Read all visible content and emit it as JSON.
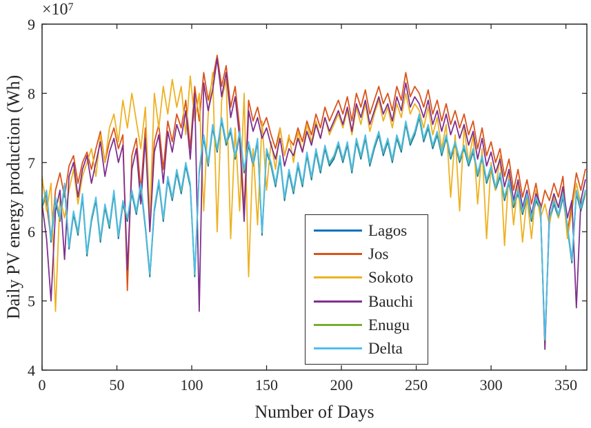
{
  "figure": {
    "multiplier_base": "×10",
    "multiplier_exp": "7",
    "xlabel": "Number of Days",
    "ylabel": "Daily PV energy production (Wh)"
  },
  "legend": {
    "items": [
      {
        "label": "Lagos",
        "color": "#0072BD"
      },
      {
        "label": "Jos",
        "color": "#D95319"
      },
      {
        "label": "Sokoto",
        "color": "#EDB120"
      },
      {
        "label": "Bauchi",
        "color": "#7E2F8E"
      },
      {
        "label": "Enugu",
        "color": "#77AC30"
      },
      {
        "label": "Delta",
        "color": "#4DBEEE"
      }
    ]
  },
  "chart_data": {
    "type": "line",
    "title": "",
    "xlabel": "Number of Days",
    "ylabel": "Daily PV energy production (Wh)",
    "y_unit_multiplier": 10000000,
    "xlim": [
      0,
      364
    ],
    "ylim_e7": [
      4,
      9
    ],
    "xticks": [
      0,
      50,
      100,
      150,
      200,
      250,
      300,
      350
    ],
    "yticks": [
      4,
      5,
      6,
      7,
      8,
      9
    ],
    "grid": false,
    "legend_position": "inside lower right of center",
    "axis_color": "#262626",
    "x_days": {
      "start": 0,
      "step": 3,
      "count": 122
    },
    "series": [
      {
        "name": "Lagos",
        "color": "#0072BD",
        "values_e7": [
          6.35,
          6.55,
          5.85,
          6.45,
          6.15,
          6.65,
          5.75,
          6.25,
          5.95,
          6.5,
          5.65,
          6.15,
          6.45,
          5.85,
          6.35,
          6.05,
          6.55,
          5.9,
          6.4,
          6.15,
          6.55,
          6.25,
          6.65,
          6.05,
          5.35,
          6.3,
          6.7,
          6.15,
          6.75,
          6.45,
          6.85,
          6.55,
          6.95,
          6.65,
          5.35,
          6.85,
          7.35,
          6.95,
          7.5,
          7.15,
          7.6,
          7.25,
          7.45,
          7.05,
          7.4,
          6.85,
          7.25,
          6.95,
          7.3,
          5.95,
          7.15,
          6.95,
          6.65,
          7.05,
          6.45,
          6.85,
          6.55,
          6.95,
          6.65,
          7.1,
          6.75,
          7.15,
          6.85,
          7.2,
          6.95,
          7.05,
          7.25,
          7.0,
          7.25,
          6.85,
          7.3,
          7.05,
          7.35,
          6.95,
          7.2,
          7.4,
          7.1,
          7.3,
          7.0,
          7.35,
          7.15,
          7.55,
          7.25,
          7.4,
          7.65,
          7.3,
          7.5,
          7.2,
          7.4,
          7.1,
          7.35,
          7.05,
          7.25,
          7.0,
          7.2,
          6.95,
          7.15,
          6.8,
          7.05,
          6.7,
          6.9,
          6.6,
          6.8,
          6.45,
          6.7,
          6.35,
          6.55,
          6.25,
          6.5,
          6.15,
          6.45,
          6.3,
          4.4,
          6.15,
          6.4,
          6.2,
          6.5,
          6.05,
          5.55,
          6.55,
          6.3,
          6.55
        ]
      },
      {
        "name": "Jos",
        "color": "#D95319",
        "values_e7": [
          6.75,
          6.4,
          5.9,
          6.6,
          6.85,
          6.5,
          6.95,
          7.1,
          6.7,
          7.0,
          7.15,
          6.9,
          7.2,
          7.45,
          7.0,
          7.3,
          7.5,
          7.2,
          7.4,
          5.15,
          7.1,
          7.35,
          6.6,
          7.5,
          6.2,
          7.3,
          7.55,
          6.9,
          7.6,
          7.3,
          7.7,
          7.5,
          7.9,
          7.2,
          8.1,
          7.6,
          8.3,
          7.9,
          8.2,
          8.55,
          8.1,
          8.4,
          7.8,
          8.1,
          7.5,
          6.3,
          7.9,
          7.6,
          7.8,
          7.5,
          7.65,
          7.4,
          7.2,
          7.5,
          7.1,
          7.35,
          7.25,
          7.5,
          7.3,
          7.6,
          7.4,
          7.7,
          7.5,
          7.8,
          7.6,
          7.75,
          7.9,
          7.7,
          7.95,
          7.6,
          8.0,
          7.8,
          8.05,
          7.7,
          7.9,
          8.1,
          7.85,
          8.0,
          7.75,
          8.1,
          7.9,
          8.3,
          7.95,
          8.1,
          8.0,
          7.8,
          8.05,
          7.7,
          7.9,
          7.6,
          7.85,
          7.55,
          7.75,
          7.5,
          7.7,
          7.4,
          7.6,
          7.2,
          7.5,
          7.1,
          7.3,
          7.0,
          7.2,
          6.8,
          7.05,
          6.6,
          6.9,
          6.5,
          6.75,
          6.4,
          6.7,
          6.3,
          6.6,
          6.45,
          6.7,
          6.5,
          6.8,
          6.0,
          6.4,
          6.85,
          6.6,
          6.9
        ]
      },
      {
        "name": "Sokoto",
        "color": "#EDB120",
        "values_e7": [
          6.8,
          6.3,
          6.7,
          4.85,
          6.5,
          6.2,
          6.6,
          6.9,
          6.4,
          6.8,
          7.0,
          7.2,
          6.8,
          7.4,
          7.0,
          7.5,
          7.7,
          7.3,
          7.9,
          7.5,
          8.0,
          7.6,
          7.2,
          7.8,
          6.2,
          8.0,
          7.5,
          8.1,
          7.7,
          8.2,
          7.8,
          8.1,
          7.4,
          8.25,
          7.6,
          8.0,
          6.3,
          7.7,
          8.3,
          6.0,
          7.9,
          8.2,
          5.9,
          7.5,
          6.3,
          8.0,
          5.35,
          7.2,
          6.1,
          7.6,
          6.6,
          7.3,
          6.9,
          7.5,
          7.1,
          7.4,
          7.0,
          7.45,
          7.15,
          7.55,
          7.3,
          7.6,
          7.35,
          7.65,
          7.4,
          7.55,
          7.7,
          7.5,
          7.75,
          7.4,
          7.8,
          7.55,
          7.85,
          7.45,
          7.7,
          7.9,
          7.6,
          7.8,
          7.5,
          7.85,
          7.65,
          8.0,
          7.7,
          7.85,
          7.75,
          7.5,
          7.8,
          7.4,
          7.65,
          7.2,
          7.55,
          6.5,
          7.4,
          6.3,
          7.5,
          7.0,
          7.4,
          6.4,
          7.2,
          5.9,
          7.0,
          6.6,
          7.1,
          5.8,
          6.9,
          6.1,
          6.7,
          5.85,
          6.5,
          5.9,
          6.6,
          6.2,
          6.4,
          6.1,
          6.5,
          6.2,
          6.6,
          5.9,
          6.3,
          6.7,
          6.4,
          6.55
        ]
      },
      {
        "name": "Bauchi",
        "color": "#7E2F8E",
        "values_e7": [
          6.4,
          5.9,
          5.0,
          6.3,
          6.6,
          5.6,
          6.8,
          7.0,
          6.5,
          6.9,
          7.1,
          6.7,
          7.0,
          7.3,
          6.8,
          7.15,
          7.35,
          7.0,
          7.25,
          5.45,
          6.9,
          7.2,
          6.4,
          7.35,
          6.0,
          7.15,
          7.4,
          6.7,
          7.45,
          7.15,
          7.55,
          7.35,
          7.75,
          7.05,
          8.0,
          4.85,
          8.15,
          7.75,
          8.05,
          8.5,
          7.95,
          8.3,
          7.65,
          7.95,
          7.35,
          6.15,
          7.75,
          7.45,
          7.65,
          7.35,
          7.5,
          7.25,
          7.05,
          7.35,
          6.95,
          7.2,
          7.1,
          7.35,
          7.15,
          7.45,
          7.25,
          7.55,
          7.35,
          7.65,
          7.45,
          7.6,
          7.75,
          7.55,
          7.8,
          7.45,
          7.85,
          7.65,
          7.9,
          7.55,
          7.75,
          7.95,
          7.7,
          7.85,
          7.6,
          7.95,
          7.75,
          8.15,
          7.8,
          7.95,
          7.85,
          7.65,
          7.9,
          7.55,
          7.75,
          7.45,
          7.7,
          7.4,
          7.6,
          7.35,
          7.55,
          7.25,
          7.45,
          7.05,
          7.35,
          6.95,
          7.15,
          6.85,
          7.05,
          6.65,
          6.9,
          6.45,
          6.75,
          6.35,
          6.6,
          6.25,
          6.55,
          6.4,
          4.3,
          6.3,
          6.55,
          6.35,
          6.65,
          6.2,
          6.45,
          4.9,
          6.45,
          6.75
        ]
      },
      {
        "name": "Enugu",
        "color": "#77AC30",
        "values_e7": [
          6.38,
          6.58,
          5.88,
          6.48,
          6.18,
          6.68,
          5.78,
          6.28,
          5.98,
          6.53,
          5.68,
          6.18,
          6.48,
          5.88,
          6.38,
          6.08,
          6.58,
          5.93,
          6.43,
          6.18,
          6.58,
          6.28,
          6.68,
          6.08,
          5.38,
          6.33,
          6.73,
          6.18,
          6.78,
          6.48,
          6.88,
          6.58,
          6.98,
          6.68,
          5.38,
          6.88,
          7.38,
          6.98,
          7.53,
          7.18,
          7.63,
          7.28,
          7.48,
          7.08,
          7.43,
          6.88,
          7.28,
          6.98,
          7.33,
          5.98,
          7.18,
          6.98,
          6.68,
          7.08,
          6.48,
          6.88,
          6.58,
          6.98,
          6.68,
          7.13,
          6.78,
          7.18,
          6.88,
          7.23,
          6.98,
          7.08,
          7.28,
          7.03,
          7.28,
          6.88,
          7.33,
          7.08,
          7.38,
          6.98,
          7.23,
          7.43,
          7.13,
          7.33,
          7.03,
          7.38,
          7.18,
          7.58,
          7.28,
          7.43,
          7.68,
          7.33,
          7.53,
          7.23,
          7.43,
          7.13,
          7.38,
          7.08,
          7.28,
          7.03,
          7.23,
          6.98,
          7.18,
          6.83,
          7.08,
          6.73,
          6.93,
          6.63,
          6.83,
          6.48,
          6.73,
          6.38,
          6.58,
          6.28,
          6.53,
          6.18,
          6.48,
          6.33,
          4.43,
          6.18,
          6.43,
          6.23,
          6.53,
          6.08,
          5.58,
          6.58,
          6.33,
          6.58
        ]
      },
      {
        "name": "Delta",
        "color": "#4DBEEE",
        "values_e7": [
          6.4,
          6.6,
          5.9,
          6.5,
          6.2,
          6.7,
          5.8,
          6.3,
          6.0,
          6.55,
          5.7,
          6.2,
          6.5,
          5.9,
          6.4,
          6.1,
          6.6,
          5.95,
          6.45,
          6.2,
          6.6,
          6.3,
          6.7,
          6.1,
          5.4,
          6.35,
          6.75,
          6.2,
          6.8,
          6.5,
          6.9,
          6.6,
          7.0,
          6.7,
          5.4,
          6.9,
          7.4,
          7.0,
          7.55,
          7.2,
          7.65,
          7.3,
          7.5,
          7.1,
          7.45,
          6.9,
          7.3,
          7.0,
          7.35,
          6.0,
          7.2,
          7.0,
          6.7,
          7.1,
          6.5,
          6.9,
          6.6,
          7.0,
          6.7,
          7.15,
          6.8,
          7.2,
          6.9,
          7.25,
          7.0,
          7.1,
          7.3,
          7.05,
          7.3,
          6.9,
          7.35,
          7.1,
          7.4,
          7.0,
          7.25,
          7.45,
          7.15,
          7.35,
          7.05,
          7.4,
          7.2,
          7.6,
          7.3,
          7.45,
          7.7,
          7.35,
          7.55,
          7.25,
          7.45,
          7.15,
          7.4,
          7.1,
          7.3,
          7.05,
          7.25,
          7.0,
          7.2,
          6.85,
          7.1,
          6.75,
          6.95,
          6.65,
          6.85,
          6.5,
          6.75,
          6.4,
          6.6,
          6.3,
          6.55,
          6.2,
          6.5,
          6.35,
          4.45,
          6.2,
          6.45,
          6.25,
          6.55,
          6.1,
          5.6,
          6.6,
          6.35,
          6.6
        ]
      }
    ]
  }
}
